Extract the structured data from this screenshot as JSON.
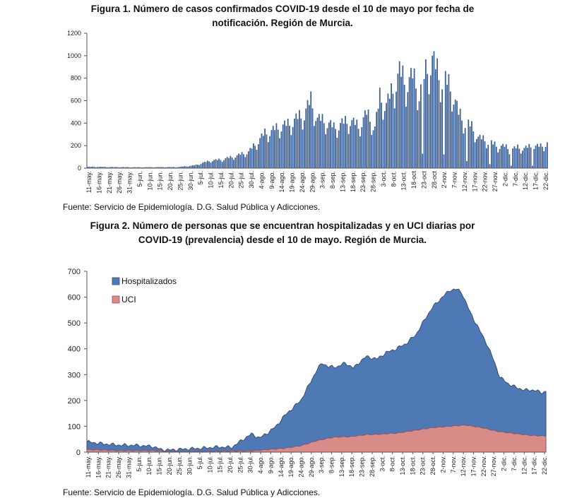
{
  "figure1": {
    "title_line1": "Figura 1. Número de casos confirmados COVID-19 desde el 10 de mayo por fecha de",
    "title_line2": "notificación. Región de Murcia.",
    "source": "Fuente: Servicio de Epidemiología. D.G. Salud Pública y Adicciones."
  },
  "figure2": {
    "title_line1": "Figura 2. Número de personas que se encuentran hospitalizadas y en UCI diarias por",
    "title_line2": "COVID-19 (prevalencia) desde el 10 de mayo. Región de Murcia.",
    "source": "Fuente: Servicio de Epidemiología. D.G. Salud Pública y Adicciones."
  },
  "chart_data": [
    {
      "type": "bar",
      "ylim": [
        0,
        1200
      ],
      "yticks": [
        0,
        200,
        400,
        600,
        800,
        1000,
        1200
      ],
      "bar_color": "#3a5f96",
      "xtick_labels": [
        "11-may.",
        "16-may.",
        "21-may.",
        "26-may.",
        "31-may.",
        "5-jun.",
        "10-jun.",
        "15-jun.",
        "20-jun.",
        "25-jun.",
        "30-jun.",
        "5-jul.",
        "10-jul.",
        "15-jul.",
        "20-jul.",
        "25-jul.",
        "30-jul.",
        "4-ago.",
        "9-ago.",
        "14-ago.",
        "19-ago.",
        "24-ago.",
        "29-ago.",
        "3-sep.",
        "8-sep.",
        "13-sep.",
        "18-sep.",
        "23-sep.",
        "28-sep.",
        "3-oct.",
        "8-oct.",
        "13-oct.",
        "18-oct",
        "23-oct",
        "28-oct",
        "2-nov.",
        "7-nov.",
        "12-nov.",
        "17-nov.",
        "22-nov.",
        "27-nov.",
        "2-dic.",
        "7-dic.",
        "12-dic.",
        "17-dic.",
        "22-dic."
      ],
      "anchors": [
        [
          0,
          12
        ],
        [
          30,
          8
        ],
        [
          55,
          10
        ],
        [
          65,
          25
        ],
        [
          75,
          70
        ],
        [
          82,
          80
        ],
        [
          90,
          110
        ],
        [
          98,
          150
        ],
        [
          104,
          250
        ],
        [
          108,
          320
        ],
        [
          112,
          340
        ],
        [
          117,
          380
        ],
        [
          122,
          400
        ],
        [
          127,
          450
        ],
        [
          132,
          500
        ],
        [
          136,
          620
        ],
        [
          140,
          450
        ],
        [
          145,
          430
        ],
        [
          150,
          370
        ],
        [
          155,
          410
        ],
        [
          160,
          440
        ],
        [
          165,
          380
        ],
        [
          170,
          500
        ],
        [
          175,
          370
        ],
        [
          178,
          650
        ],
        [
          182,
          580
        ],
        [
          186,
          720
        ],
        [
          190,
          880
        ],
        [
          194,
          780
        ],
        [
          198,
          840
        ],
        [
          202,
          700
        ],
        [
          206,
          880
        ],
        [
          210,
          1000
        ],
        [
          214,
          850
        ],
        [
          218,
          800
        ],
        [
          222,
          720
        ],
        [
          226,
          500
        ],
        [
          230,
          420
        ],
        [
          234,
          380
        ],
        [
          238,
          280
        ],
        [
          242,
          260
        ],
        [
          246,
          230
        ],
        [
          250,
          200
        ],
        [
          254,
          200
        ],
        [
          258,
          170
        ],
        [
          262,
          190
        ],
        [
          266,
          180
        ],
        [
          270,
          200
        ],
        [
          276,
          200
        ],
        [
          280,
          230
        ]
      ],
      "zero_gaps": [
        204,
        217,
        231,
        245,
        258,
        271
      ]
    },
    {
      "type": "area",
      "ylim": [
        0,
        700
      ],
      "yticks": [
        0,
        100,
        200,
        300,
        400,
        500,
        600,
        700
      ],
      "legend": "top-left",
      "series": [
        {
          "name": "Hospitalizados",
          "color": "#4f79b5",
          "anchors": [
            [
              0,
              40
            ],
            [
              10,
              32
            ],
            [
              20,
              27
            ],
            [
              30,
              26
            ],
            [
              40,
              22
            ],
            [
              45,
              10
            ],
            [
              50,
              8
            ],
            [
              60,
              12
            ],
            [
              70,
              15
            ],
            [
              80,
              20
            ],
            [
              88,
              18
            ],
            [
              94,
              45
            ],
            [
              100,
              70
            ],
            [
              105,
              55
            ],
            [
              110,
              75
            ],
            [
              115,
              100
            ],
            [
              120,
              140
            ],
            [
              125,
              170
            ],
            [
              130,
              200
            ],
            [
              135,
              260
            ],
            [
              140,
              320
            ],
            [
              143,
              345
            ],
            [
              147,
              330
            ],
            [
              152,
              330
            ],
            [
              157,
              345
            ],
            [
              162,
              325
            ],
            [
              166,
              350
            ],
            [
              170,
              370
            ],
            [
              176,
              360
            ],
            [
              182,
              385
            ],
            [
              188,
              400
            ],
            [
              194,
              420
            ],
            [
              200,
              455
            ],
            [
              206,
              520
            ],
            [
              210,
              560
            ],
            [
              216,
              600
            ],
            [
              221,
              628
            ],
            [
              225,
              630
            ],
            [
              228,
              615
            ],
            [
              233,
              540
            ],
            [
              238,
              480
            ],
            [
              243,
              420
            ],
            [
              247,
              360
            ],
            [
              251,
              290
            ],
            [
              256,
              265
            ],
            [
              261,
              250
            ],
            [
              266,
              240
            ],
            [
              272,
              240
            ],
            [
              276,
              230
            ],
            [
              279,
              235
            ]
          ]
        },
        {
          "name": "UCI",
          "color": "#d98b88",
          "anchors": [
            [
              0,
              10
            ],
            [
              20,
              6
            ],
            [
              40,
              6
            ],
            [
              50,
              2
            ],
            [
              80,
              3
            ],
            [
              100,
              5
            ],
            [
              110,
              10
            ],
            [
              120,
              15
            ],
            [
              130,
              25
            ],
            [
              140,
              45
            ],
            [
              150,
              58
            ],
            [
              160,
              60
            ],
            [
              170,
              68
            ],
            [
              180,
              70
            ],
            [
              190,
              75
            ],
            [
              200,
              85
            ],
            [
              210,
              95
            ],
            [
              220,
              100
            ],
            [
              230,
              105
            ],
            [
              240,
              95
            ],
            [
              250,
              80
            ],
            [
              260,
              72
            ],
            [
              270,
              65
            ],
            [
              279,
              62
            ]
          ]
        }
      ],
      "xtick_labels": [
        "11-may.",
        "16-may.",
        "21-may.",
        "26-may.",
        "31-may.",
        "5-jun.",
        "10-jun.",
        "15-jun.",
        "20-jun.",
        "25-jun.",
        "30-jun.",
        "5-jul.",
        "10-jul.",
        "15-jul.",
        "20-jul.",
        "25-jul.",
        "30-jul.",
        "4-ago.",
        "9-ago.",
        "14-ago.",
        "19-ago.",
        "24-ago.",
        "29-ago.",
        "3-sep.",
        "8-sep.",
        "13-sep.",
        "18-sep.",
        "23-sep.",
        "28-sep.",
        "3-oct.",
        "8-oct.",
        "13-oct.",
        "18-oct.",
        "23-oct.",
        "28-oct.",
        "2-nov.",
        "7-nov.",
        "12-nov.",
        "17-nov.",
        "22-nov.",
        "27-nov.",
        "2-dic.",
        "7-dic.",
        "12-dic.",
        "17-dic.",
        "22-dic."
      ]
    }
  ]
}
